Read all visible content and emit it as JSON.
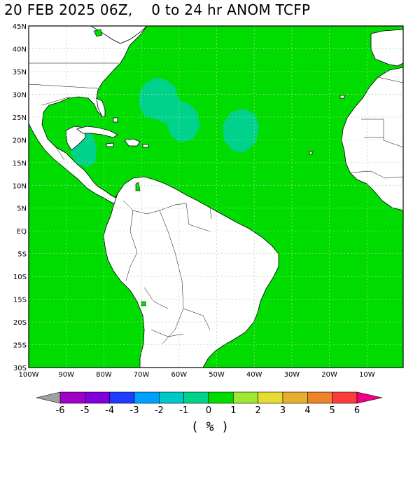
{
  "title": {
    "date": "20 FEB 2025 06Z,",
    "range": "0 to 24 hr ANOM TCFP"
  },
  "axes": {
    "lat_labels": [
      "45N",
      "40N",
      "35N",
      "30N",
      "25N",
      "20N",
      "15N",
      "10N",
      "5N",
      "EQ",
      "5S",
      "10S",
      "15S",
      "20S",
      "25S",
      "30S"
    ],
    "lon_labels": [
      "100W",
      "90W",
      "80W",
      "70W",
      "60W",
      "50W",
      "40W",
      "30W",
      "20W",
      "10W"
    ]
  },
  "colorbar": {
    "labels": [
      "-6",
      "-5",
      "-4",
      "-3",
      "-2",
      "-1",
      "0",
      "1",
      "2",
      "3",
      "4",
      "5",
      "6"
    ],
    "colors": [
      "#a0a0a0",
      "#a000c8",
      "#8200dc",
      "#1e3cff",
      "#00a0ff",
      "#00c8c8",
      "#00d28c",
      "#00dc00",
      "#a0e632",
      "#e6dc32",
      "#e6af2d",
      "#f08228",
      "#fa3c3c",
      "#f00082"
    ],
    "unit": "( % )"
  },
  "map": {
    "ocean_color": "#00dc00",
    "anomaly_color": "#00d28c",
    "land_color": "#ffffff"
  }
}
